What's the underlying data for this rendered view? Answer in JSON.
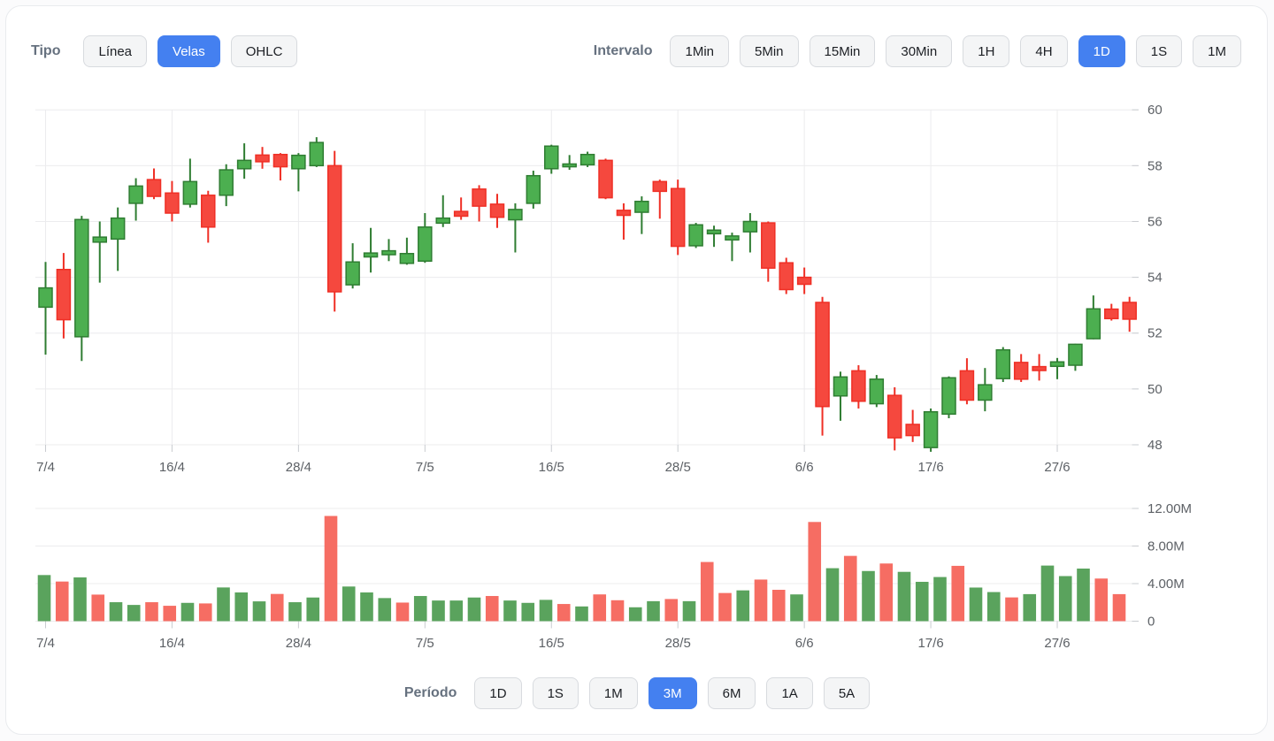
{
  "toolbar_top": {
    "type": {
      "label": "Tipo",
      "buttons": [
        "Línea",
        "Velas",
        "OHLC"
      ],
      "selected": "Velas"
    },
    "interval": {
      "label": "Intervalo",
      "buttons": [
        "1Min",
        "5Min",
        "15Min",
        "30Min",
        "1H",
        "4H",
        "1D",
        "1S",
        "1M"
      ],
      "selected": "1D"
    }
  },
  "toolbar_bottom": {
    "period": {
      "label": "Período",
      "buttons": [
        "1D",
        "1S",
        "1M",
        "3M",
        "6M",
        "1A",
        "5A"
      ],
      "selected": "3M"
    }
  },
  "colors": {
    "up_fill": "#4CAF50",
    "up_stroke": "#2F7D32",
    "down_fill": "#F5483E",
    "down_stroke": "#EF2F25",
    "vol_up": "#5AA35D",
    "vol_down": "#F66D63",
    "grid": "#ECECEE",
    "tick": "#C9CCD0",
    "axis_text": "#5D6166",
    "accent": "#4480F0"
  },
  "chart_data": {
    "type": "candlestick",
    "x_tick_labels": [
      "7/4",
      "16/4",
      "28/4",
      "7/5",
      "16/5",
      "28/5",
      "6/6",
      "17/6",
      "27/6"
    ],
    "x_tick_every": 7,
    "price_axis": {
      "ticks": [
        60,
        58,
        56,
        54,
        52,
        50,
        48
      ],
      "min": 48,
      "max": 60
    },
    "volume_axis": {
      "ticks": [
        "12.00M",
        "8.00M",
        "4.00M",
        "0"
      ],
      "tick_values": [
        12000000,
        8000000,
        4000000,
        0
      ]
    },
    "candles": {
      "columns": [
        "open",
        "high",
        "low",
        "close",
        "direction"
      ],
      "rows": [
        [
          52.93,
          54.55,
          51.23,
          53.62,
          "u"
        ],
        [
          54.28,
          54.87,
          51.81,
          52.48,
          "d"
        ],
        [
          51.87,
          56.2,
          51.0,
          56.07,
          "u"
        ],
        [
          55.26,
          56.0,
          53.81,
          55.44,
          "u"
        ],
        [
          55.37,
          56.5,
          54.23,
          56.12,
          "u"
        ],
        [
          56.65,
          57.55,
          56.03,
          57.27,
          "u"
        ],
        [
          57.5,
          57.9,
          56.8,
          56.9,
          "d"
        ],
        [
          57.02,
          57.45,
          56.0,
          56.3,
          "d"
        ],
        [
          56.62,
          58.25,
          56.5,
          57.43,
          "u"
        ],
        [
          56.94,
          57.1,
          55.24,
          55.8,
          "d"
        ],
        [
          56.94,
          58.05,
          56.55,
          57.85,
          "u"
        ],
        [
          57.89,
          58.8,
          57.53,
          58.19,
          "u"
        ],
        [
          58.38,
          58.67,
          57.89,
          58.14,
          "d"
        ],
        [
          58.4,
          58.45,
          57.47,
          57.96,
          "d"
        ],
        [
          57.89,
          58.45,
          57.08,
          58.37,
          "u"
        ],
        [
          58.0,
          59.02,
          57.95,
          58.83,
          "u"
        ],
        [
          58.0,
          58.53,
          52.77,
          53.48,
          "d"
        ],
        [
          53.73,
          55.22,
          53.6,
          54.55,
          "u"
        ],
        [
          54.73,
          55.77,
          54.17,
          54.87,
          "u"
        ],
        [
          54.81,
          55.37,
          54.58,
          54.95,
          "u"
        ],
        [
          54.5,
          55.42,
          54.45,
          54.85,
          "u"
        ],
        [
          54.58,
          56.3,
          54.52,
          55.8,
          "u"
        ],
        [
          55.94,
          56.94,
          55.8,
          56.12,
          "u"
        ],
        [
          56.36,
          56.86,
          56.06,
          56.19,
          "d"
        ],
        [
          57.16,
          57.3,
          56.0,
          56.55,
          "d"
        ],
        [
          56.62,
          56.99,
          55.77,
          56.15,
          "d"
        ],
        [
          56.06,
          56.65,
          54.89,
          56.43,
          "u"
        ],
        [
          56.65,
          57.82,
          56.46,
          57.64,
          "u"
        ],
        [
          57.89,
          58.75,
          57.71,
          58.7,
          "u"
        ],
        [
          57.96,
          58.38,
          57.85,
          58.06,
          "u"
        ],
        [
          58.03,
          58.5,
          57.95,
          58.4,
          "u"
        ],
        [
          58.19,
          58.25,
          56.8,
          56.85,
          "d"
        ],
        [
          56.4,
          56.65,
          55.35,
          56.22,
          "d"
        ],
        [
          56.33,
          56.9,
          55.55,
          56.72,
          "u"
        ],
        [
          57.43,
          57.5,
          56.1,
          57.08,
          "d"
        ],
        [
          57.18,
          57.5,
          54.8,
          55.11,
          "d"
        ],
        [
          55.13,
          55.95,
          55.05,
          55.88,
          "u"
        ],
        [
          55.56,
          55.85,
          55.09,
          55.69,
          "u"
        ],
        [
          55.34,
          55.6,
          54.58,
          55.48,
          "u"
        ],
        [
          55.63,
          56.3,
          54.89,
          56.0,
          "u"
        ],
        [
          55.95,
          56.0,
          53.84,
          54.33,
          "d"
        ],
        [
          54.52,
          54.7,
          53.4,
          53.56,
          "d"
        ],
        [
          54.0,
          54.35,
          53.4,
          53.75,
          "d"
        ],
        [
          53.1,
          53.3,
          48.33,
          49.37,
          "d"
        ],
        [
          49.75,
          50.62,
          48.86,
          50.43,
          "u"
        ],
        [
          50.65,
          50.85,
          49.3,
          49.56,
          "d"
        ],
        [
          49.47,
          50.5,
          49.35,
          50.35,
          "u"
        ],
        [
          49.77,
          50.06,
          47.8,
          48.25,
          "d"
        ],
        [
          48.73,
          49.25,
          48.1,
          48.33,
          "d"
        ],
        [
          47.9,
          49.3,
          47.75,
          49.18,
          "u"
        ],
        [
          49.1,
          50.45,
          48.95,
          50.4,
          "u"
        ],
        [
          50.65,
          51.1,
          49.45,
          49.6,
          "d"
        ],
        [
          49.6,
          50.75,
          49.2,
          50.15,
          "u"
        ],
        [
          50.37,
          51.5,
          50.25,
          51.4,
          "u"
        ],
        [
          50.95,
          51.25,
          50.25,
          50.35,
          "d"
        ],
        [
          50.8,
          51.25,
          50.3,
          50.66,
          "d"
        ],
        [
          50.81,
          51.11,
          50.35,
          50.97,
          "u"
        ],
        [
          50.85,
          51.62,
          50.65,
          51.6,
          "u"
        ],
        [
          51.8,
          53.35,
          51.78,
          52.87,
          "u"
        ],
        [
          52.86,
          53.05,
          52.45,
          52.52,
          "d"
        ],
        [
          53.1,
          53.3,
          52.05,
          52.5,
          "d"
        ]
      ]
    },
    "volumes": {
      "columns": [
        "value_millions",
        "direction"
      ],
      "rows": [
        [
          4.91,
          "u"
        ],
        [
          4.22,
          "d"
        ],
        [
          4.66,
          "u"
        ],
        [
          2.83,
          "d"
        ],
        [
          2.02,
          "u"
        ],
        [
          1.73,
          "u"
        ],
        [
          2.02,
          "d"
        ],
        [
          1.64,
          "d"
        ],
        [
          1.95,
          "u"
        ],
        [
          1.89,
          "d"
        ],
        [
          3.59,
          "u"
        ],
        [
          3.06,
          "u"
        ],
        [
          2.11,
          "u"
        ],
        [
          2.9,
          "d"
        ],
        [
          2.02,
          "u"
        ],
        [
          2.52,
          "u"
        ],
        [
          11.2,
          "d"
        ],
        [
          3.69,
          "u"
        ],
        [
          3.06,
          "u"
        ],
        [
          2.46,
          "u"
        ],
        [
          1.98,
          "d"
        ],
        [
          2.68,
          "u"
        ],
        [
          2.2,
          "u"
        ],
        [
          2.2,
          "u"
        ],
        [
          2.52,
          "u"
        ],
        [
          2.68,
          "d"
        ],
        [
          2.2,
          "u"
        ],
        [
          1.95,
          "u"
        ],
        [
          2.27,
          "u"
        ],
        [
          1.83,
          "d"
        ],
        [
          1.57,
          "u"
        ],
        [
          2.85,
          "d"
        ],
        [
          2.23,
          "d"
        ],
        [
          1.48,
          "u"
        ],
        [
          2.13,
          "u"
        ],
        [
          2.36,
          "d"
        ],
        [
          2.13,
          "u"
        ],
        [
          6.3,
          "d"
        ],
        [
          3.0,
          "d"
        ],
        [
          3.28,
          "u"
        ],
        [
          4.43,
          "d"
        ],
        [
          3.34,
          "d"
        ],
        [
          2.85,
          "u"
        ],
        [
          10.56,
          "d"
        ],
        [
          5.64,
          "u"
        ],
        [
          6.95,
          "d"
        ],
        [
          5.34,
          "u"
        ],
        [
          6.14,
          "d"
        ],
        [
          5.25,
          "u"
        ],
        [
          4.19,
          "u"
        ],
        [
          4.7,
          "u"
        ],
        [
          5.89,
          "d"
        ],
        [
          3.58,
          "u"
        ],
        [
          3.1,
          "u"
        ],
        [
          2.53,
          "d"
        ],
        [
          2.88,
          "u"
        ],
        [
          5.92,
          "u"
        ],
        [
          4.8,
          "u"
        ],
        [
          5.6,
          "u"
        ],
        [
          4.54,
          "d"
        ],
        [
          2.88,
          "d"
        ]
      ]
    }
  }
}
